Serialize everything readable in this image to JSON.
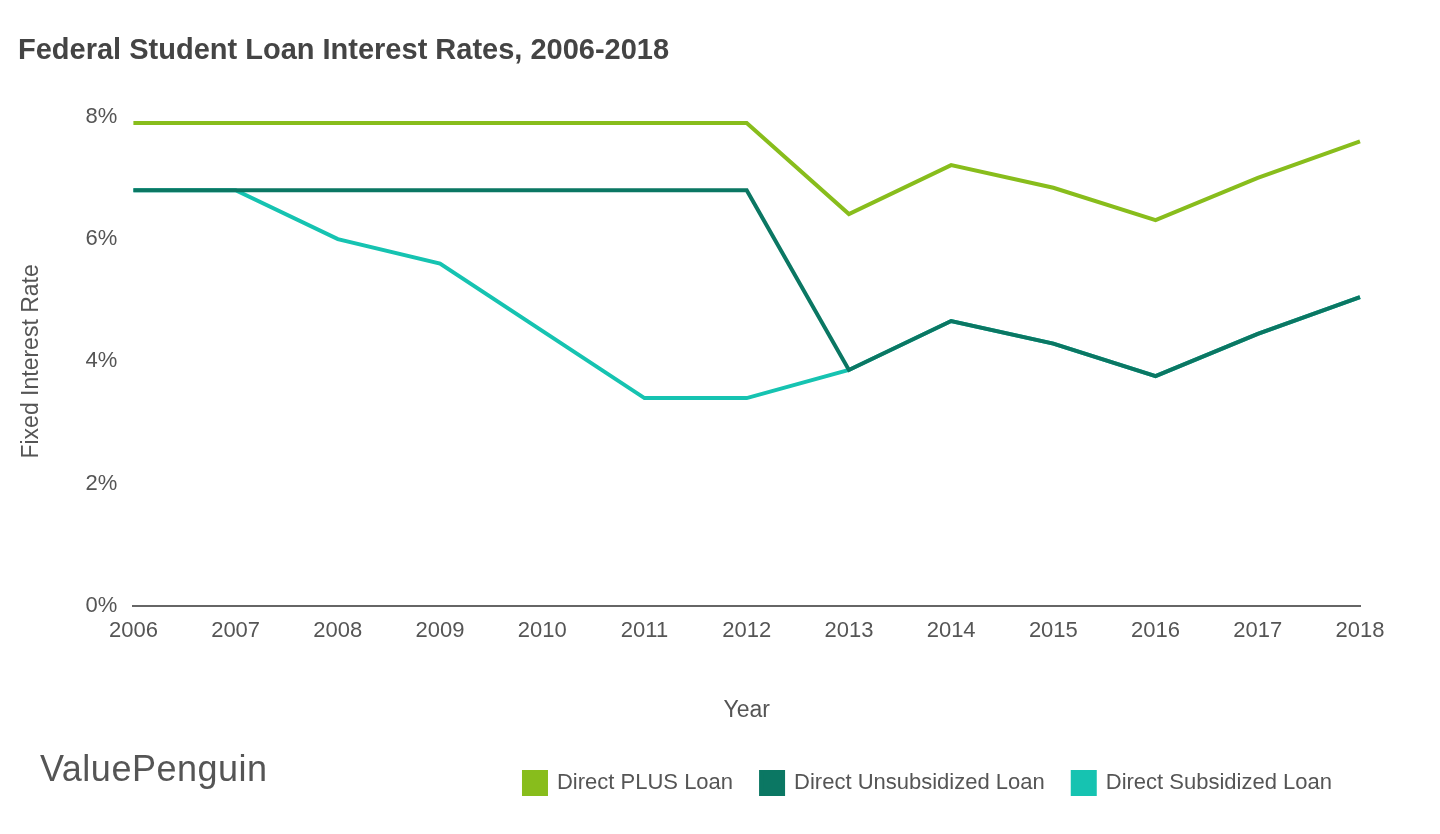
{
  "chart_data": {
    "type": "line",
    "title": "Federal Student Loan Interest Rates, 2006-2018",
    "x_label": "Year",
    "y_label": "Fixed Interest Rate",
    "categories": [
      "2006",
      "2007",
      "2008",
      "2009",
      "2010",
      "2011",
      "2012",
      "2013",
      "2014",
      "2015",
      "2016",
      "2017",
      "2018"
    ],
    "series": [
      {
        "name": "Direct Subsidized Loan",
        "color": "#16c3b1",
        "values": [
          6.8,
          6.8,
          6.0,
          5.6,
          4.5,
          3.4,
          3.4,
          3.86,
          4.66,
          4.29,
          3.76,
          4.45,
          5.05
        ]
      },
      {
        "name": "Direct Unsubsidized Loan",
        "color": "#0b7763",
        "values": [
          6.8,
          6.8,
          6.8,
          6.8,
          6.8,
          6.8,
          6.8,
          3.86,
          4.66,
          4.29,
          3.76,
          4.45,
          5.05
        ]
      },
      {
        "name": "Direct PLUS Loan",
        "color": "#88bd1c",
        "values": [
          7.9,
          7.9,
          7.9,
          7.9,
          7.9,
          7.9,
          7.9,
          6.41,
          7.21,
          6.84,
          6.31,
          7.0,
          7.6
        ]
      }
    ],
    "ylim": [
      0,
      8
    ],
    "yticks": [
      {
        "value": 0,
        "label": "0%"
      },
      {
        "value": 2,
        "label": "2%"
      },
      {
        "value": 4,
        "label": "4%"
      },
      {
        "value": 6,
        "label": "6%"
      },
      {
        "value": 8,
        "label": "8%"
      }
    ],
    "grid": false,
    "legend": "bottom"
  },
  "logo": "ValuePenguin"
}
